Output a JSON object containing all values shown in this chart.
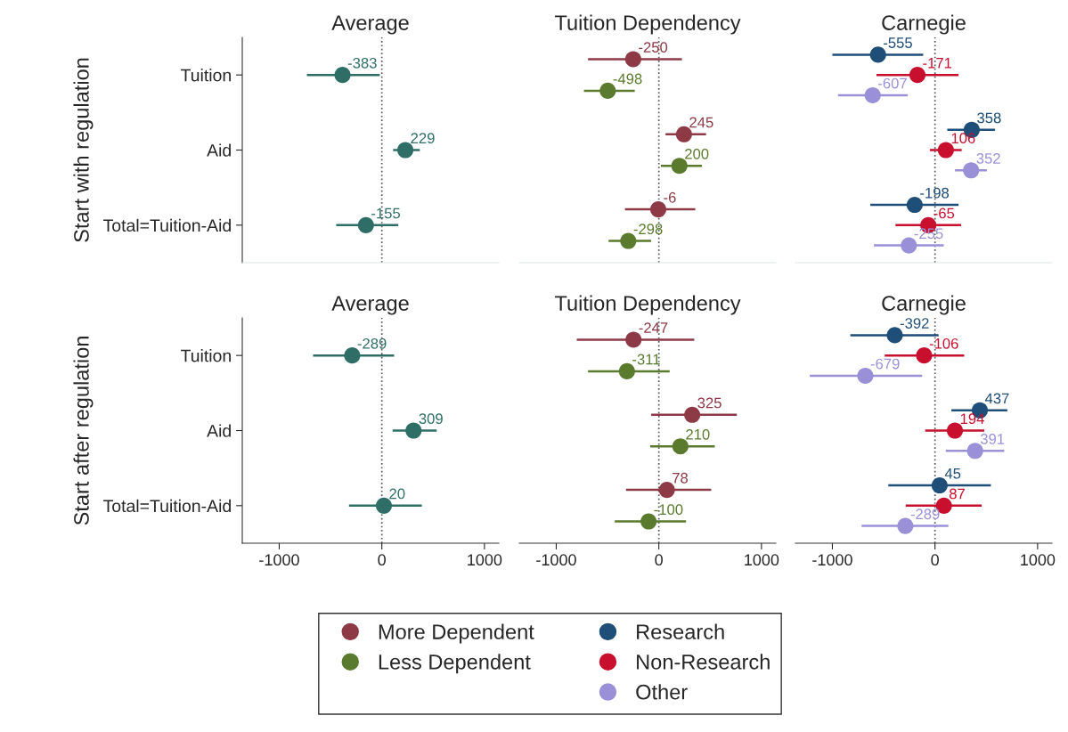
{
  "chart_data": [
    {
      "type": "scatter",
      "orientation": "horizontal",
      "title": "Average",
      "ylabel": "Start with regulation",
      "categories": [
        "Tuition",
        "Aid",
        "Total=Tuition-Aid"
      ],
      "xlim": [
        -1360,
        1140
      ],
      "xticks": [
        -1000,
        0,
        1000
      ],
      "tick_labels": "y",
      "marker": "circle",
      "data_labels": true,
      "ref_lines": [
        {
          "axis": "x",
          "value": 0,
          "color": "#555555",
          "line_style": "dotted"
        }
      ],
      "series": [
        {
          "color": "#2e6e66",
          "values": [
            -383,
            229,
            -155
          ],
          "errors": [
            [
              -730,
              -20
            ],
            [
              110,
              370
            ],
            [
              -445,
              160
            ]
          ]
        }
      ]
    },
    {
      "type": "scatter",
      "orientation": "horizontal",
      "title": "Tuition Dependency",
      "categories": [
        null,
        null,
        null
      ],
      "xlim": [
        -1360,
        1140
      ],
      "xticks": [
        -1000,
        0,
        1000
      ],
      "tick_labels": false,
      "marker": "circle",
      "data_labels": true,
      "ref_lines": [
        {
          "axis": "x",
          "value": 0,
          "color": "#555555",
          "line_style": "dotted"
        }
      ],
      "series": [
        {
          "color": "#8e3a46",
          "values": [
            -250,
            245,
            -6
          ],
          "errors": [
            [
              -690,
              225
            ],
            [
              65,
              460
            ],
            [
              -330,
              355
            ]
          ]
        },
        {
          "color": "#5a7a2e",
          "values": [
            -498,
            200,
            -298
          ],
          "errors": [
            [
              -730,
              -235
            ],
            [
              20,
              420
            ],
            [
              -490,
              -75
            ]
          ]
        }
      ]
    },
    {
      "type": "scatter",
      "orientation": "horizontal",
      "title": "Carnegie",
      "categories": [
        null,
        null,
        null
      ],
      "xlim": [
        -1360,
        1140
      ],
      "xticks": [
        -1000,
        0,
        1000
      ],
      "tick_labels": false,
      "marker": "circle",
      "data_labels": true,
      "ref_lines": [
        {
          "axis": "x",
          "value": 0,
          "color": "#555555",
          "line_style": "dotted"
        }
      ],
      "series": [
        {
          "color": "#1f4e79",
          "values": [
            -555,
            358,
            -198
          ],
          "errors": [
            [
              -1000,
              -115
            ],
            [
              120,
              585
            ],
            [
              -630,
              230
            ]
          ]
        },
        {
          "color": "#c8102e",
          "values": [
            -171,
            106,
            -65
          ],
          "errors": [
            [
              -570,
              230
            ],
            [
              -50,
              260
            ],
            [
              -385,
              255
            ]
          ]
        },
        {
          "color": "#9a90d8",
          "values": [
            -607,
            352,
            -255
          ],
          "errors": [
            [
              -945,
              -265
            ],
            [
              195,
              505
            ],
            [
              -595,
              85
            ]
          ]
        }
      ]
    },
    {
      "type": "scatter",
      "orientation": "horizontal",
      "title": "Average",
      "ylabel": "Start after regulation",
      "categories": [
        "Tuition",
        "Aid",
        "Total=Tuition-Aid"
      ],
      "xlim": [
        -1360,
        1140
      ],
      "xticks": [
        -1000,
        0,
        1000
      ],
      "marker": "circle",
      "data_labels": true,
      "ref_lines": [
        {
          "axis": "x",
          "value": 0,
          "color": "#555555",
          "line_style": "dotted"
        }
      ],
      "series": [
        {
          "color": "#2e6e66",
          "values": [
            -289,
            309,
            20
          ],
          "errors": [
            [
              -670,
              120
            ],
            [
              105,
              535
            ],
            [
              -320,
              390
            ]
          ]
        }
      ]
    },
    {
      "type": "scatter",
      "orientation": "horizontal",
      "title": "Tuition Dependency",
      "categories": [
        null,
        null,
        null
      ],
      "xlim": [
        -1360,
        1140
      ],
      "xticks": [
        -1000,
        0,
        1000
      ],
      "tick_labels": "x",
      "marker": "circle",
      "data_labels": true,
      "legend": "bottom",
      "ref_lines": [
        {
          "axis": "x",
          "value": 0,
          "color": "#555555",
          "line_style": "dotted"
        }
      ],
      "series": [
        {
          "name": "More Dependent",
          "color": "#8e3a46",
          "values": [
            -247,
            325,
            78
          ],
          "errors": [
            [
              -800,
              345
            ],
            [
              -75,
              760
            ],
            [
              -320,
              510
            ]
          ]
        },
        {
          "name": "Less Dependent",
          "color": "#5a7a2e",
          "values": [
            -311,
            210,
            -100
          ],
          "errors": [
            [
              -690,
              105
            ],
            [
              -85,
              545
            ],
            [
              -430,
              265
            ]
          ]
        }
      ]
    },
    {
      "type": "scatter",
      "orientation": "horizontal",
      "title": "Carnegie",
      "categories": [
        null,
        null,
        null
      ],
      "xlim": [
        -1360,
        1140
      ],
      "xticks": [
        -1000,
        0,
        1000
      ],
      "tick_labels": "x",
      "marker": "circle",
      "data_labels": true,
      "legend": "bottom",
      "ref_lines": [
        {
          "axis": "x",
          "value": 0,
          "color": "#555555",
          "line_style": "dotted"
        }
      ],
      "series": [
        {
          "name": "Research",
          "color": "#1f4e79",
          "values": [
            -392,
            437,
            45
          ],
          "errors": [
            [
              -825,
              35
            ],
            [
              160,
              705
            ],
            [
              -455,
              545
            ]
          ]
        },
        {
          "name": "Non-Research",
          "color": "#c8102e",
          "values": [
            -106,
            194,
            87
          ],
          "errors": [
            [
              -490,
              285
            ],
            [
              -95,
              480
            ],
            [
              -285,
              455
            ]
          ]
        },
        {
          "name": "Other",
          "color": "#9a90d8",
          "values": [
            -679,
            391,
            -289
          ],
          "errors": [
            [
              -1220,
              -125
            ],
            [
              105,
              675
            ],
            [
              -715,
              130
            ]
          ]
        }
      ]
    }
  ]
}
